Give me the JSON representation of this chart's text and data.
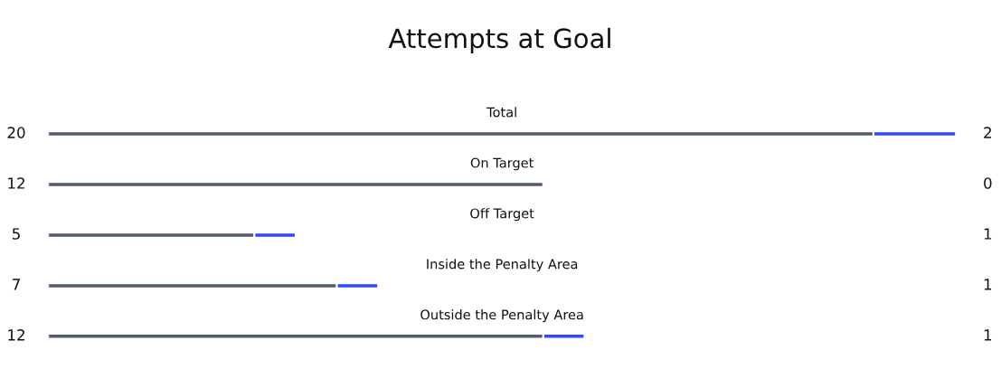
{
  "chart_data": {
    "type": "bar",
    "orientation": "horizontal",
    "stacked": true,
    "title": "Attempts at Goal",
    "categories": [
      "Total",
      "On Target",
      "Off Target",
      "Inside the Penalty Area",
      "Outside the Penalty Area"
    ],
    "tick_labels": false,
    "data_labels": true,
    "series": [
      {
        "color": "#525a72",
        "values": [
          20,
          12,
          5,
          7,
          12
        ]
      },
      {
        "color": "#2f4bf5",
        "values": [
          2,
          0,
          1,
          1,
          1
        ]
      }
    ]
  }
}
